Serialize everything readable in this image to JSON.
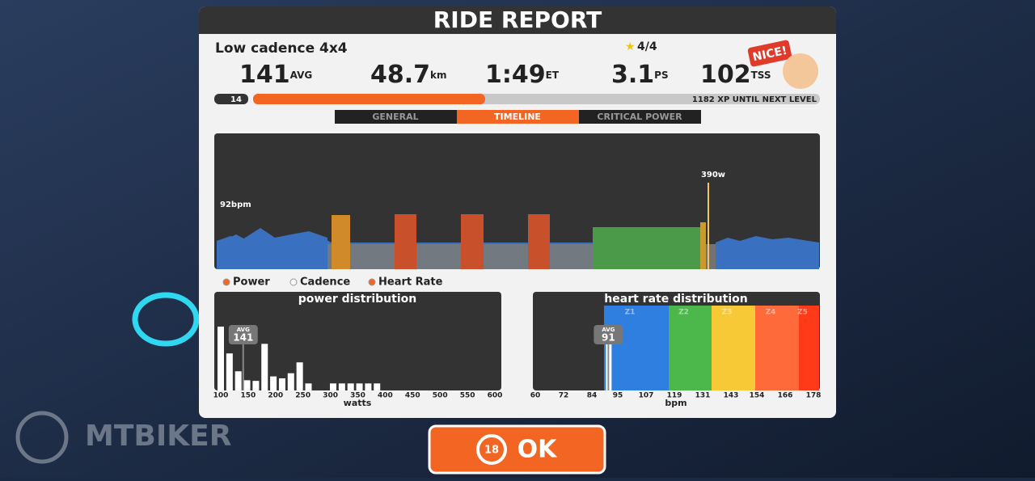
{
  "header": {
    "title": "RIDE REPORT",
    "workout": "Low cadence 4x4",
    "stars": "4/4",
    "badge": "NICE!"
  },
  "stats": [
    {
      "value": "141",
      "unit": "AVG"
    },
    {
      "value": "48.7",
      "unit": "km"
    },
    {
      "value": "1:49",
      "unit": "ET"
    },
    {
      "value": "3.1",
      "unit": "PS"
    },
    {
      "value": "102",
      "unit": "TSS"
    }
  ],
  "level": {
    "level": "14",
    "xp_text": "1182 XP UNTIL NEXT LEVEL"
  },
  "tabs": [
    "GENERAL",
    "TIMELINE",
    "CRITICAL POWER"
  ],
  "timeline": {
    "hr_label": "92bpm",
    "peak_label": "390w",
    "legend": [
      "Power",
      "Cadence",
      "Heart Rate"
    ]
  },
  "power_distribution": {
    "title": "power distribution",
    "avg_label": "AVG",
    "avg": 141,
    "xlabel": "watts",
    "xlim": [
      100,
      600
    ],
    "xticks": [
      100,
      150,
      200,
      250,
      300,
      350,
      400,
      450,
      500,
      550,
      600
    ],
    "x": [
      100,
      116,
      132,
      148,
      164,
      180,
      196,
      212,
      228,
      244,
      260,
      305,
      321,
      337,
      353,
      369,
      385
    ],
    "values": [
      100,
      58,
      30,
      16,
      15,
      73,
      22,
      19,
      27,
      44,
      11,
      11,
      11,
      11,
      11,
      11,
      11
    ]
  },
  "hr_distribution": {
    "title": "heart rate distribution",
    "avg_label": "AVG",
    "avg": 91,
    "xlabel": "bpm",
    "xlim": [
      60,
      178
    ],
    "xticks": [
      60,
      72,
      84,
      95,
      107,
      119,
      131,
      143,
      154,
      166,
      178
    ],
    "zones": [
      "Z1",
      "Z2",
      "Z3",
      "Z4",
      "Z5"
    ]
  },
  "button": {
    "countdown": "18",
    "label": "OK"
  },
  "watermark": "MTBIKER"
}
